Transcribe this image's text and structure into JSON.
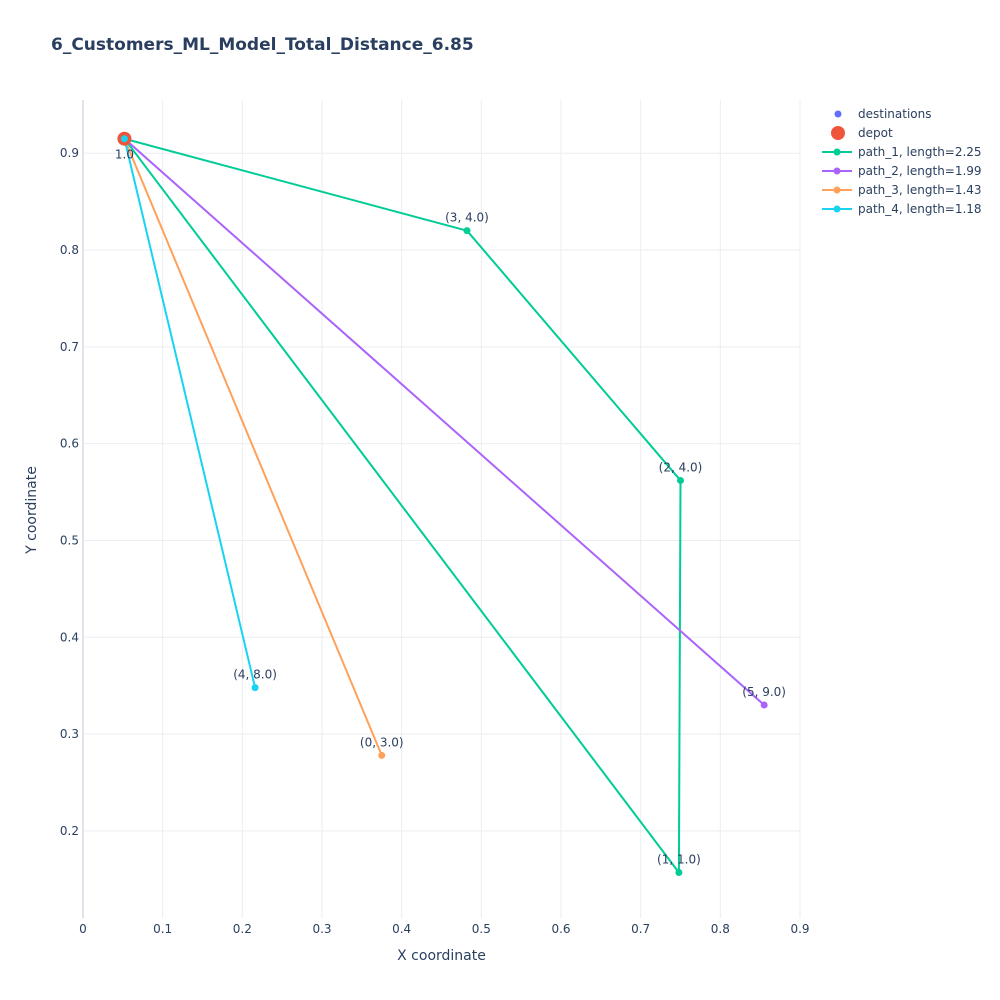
{
  "chart_data": {
    "type": "scatter",
    "title": "6_Customers_ML_Model_Total_Distance_6.85",
    "xlabel": "X coordinate",
    "ylabel": "Y coordinate",
    "xlim": [
      0,
      0.9
    ],
    "ylim": [
      0.11,
      0.955
    ],
    "xticks": [
      0,
      0.1,
      0.2,
      0.3,
      0.4,
      0.5,
      0.6,
      0.7,
      0.8,
      0.9
    ],
    "xtick_labels": [
      "0",
      "0.1",
      "0.2",
      "0.3",
      "0.4",
      "0.5",
      "0.6",
      "0.7",
      "0.8",
      "0.9"
    ],
    "yticks": [
      0.2,
      0.3,
      0.4,
      0.5,
      0.6,
      0.7,
      0.8,
      0.9
    ],
    "ytick_labels": [
      "0.2",
      "0.3",
      "0.4",
      "0.5",
      "0.6",
      "0.7",
      "0.8",
      "0.9"
    ],
    "depot": {
      "name": "depot",
      "x": 0.052,
      "y": 0.915,
      "label": "1.0",
      "color": "#EF553B"
    },
    "destinations": {
      "name": "destinations",
      "color": "#636efa",
      "points": [
        {
          "x": 0.482,
          "y": 0.82,
          "label": "(3, 4.0)"
        },
        {
          "x": 0.75,
          "y": 0.562,
          "label": "(2, 4.0)"
        },
        {
          "x": 0.748,
          "y": 0.157,
          "label": "(1, 1.0)"
        },
        {
          "x": 0.855,
          "y": 0.33,
          "label": "(5, 9.0)"
        },
        {
          "x": 0.375,
          "y": 0.278,
          "label": "(0, 3.0)"
        },
        {
          "x": 0.216,
          "y": 0.348,
          "label": "(4, 8.0)"
        }
      ]
    },
    "series": [
      {
        "name": "path_1, length=2.25",
        "color": "#00cc96",
        "x": [
          0.052,
          0.482,
          0.75,
          0.748,
          0.052
        ],
        "y": [
          0.915,
          0.82,
          0.562,
          0.157,
          0.915
        ]
      },
      {
        "name": "path_2, length=1.99",
        "color": "#ab63fa",
        "x": [
          0.052,
          0.855,
          0.052
        ],
        "y": [
          0.915,
          0.33,
          0.915
        ]
      },
      {
        "name": "path_3, length=1.43",
        "color": "#FFA15A",
        "x": [
          0.052,
          0.375,
          0.052
        ],
        "y": [
          0.915,
          0.278,
          0.915
        ]
      },
      {
        "name": "path_4, length=1.18",
        "color": "#19d3f3",
        "x": [
          0.052,
          0.216,
          0.052
        ],
        "y": [
          0.915,
          0.348,
          0.915
        ]
      }
    ],
    "legend_position": "top-right"
  }
}
